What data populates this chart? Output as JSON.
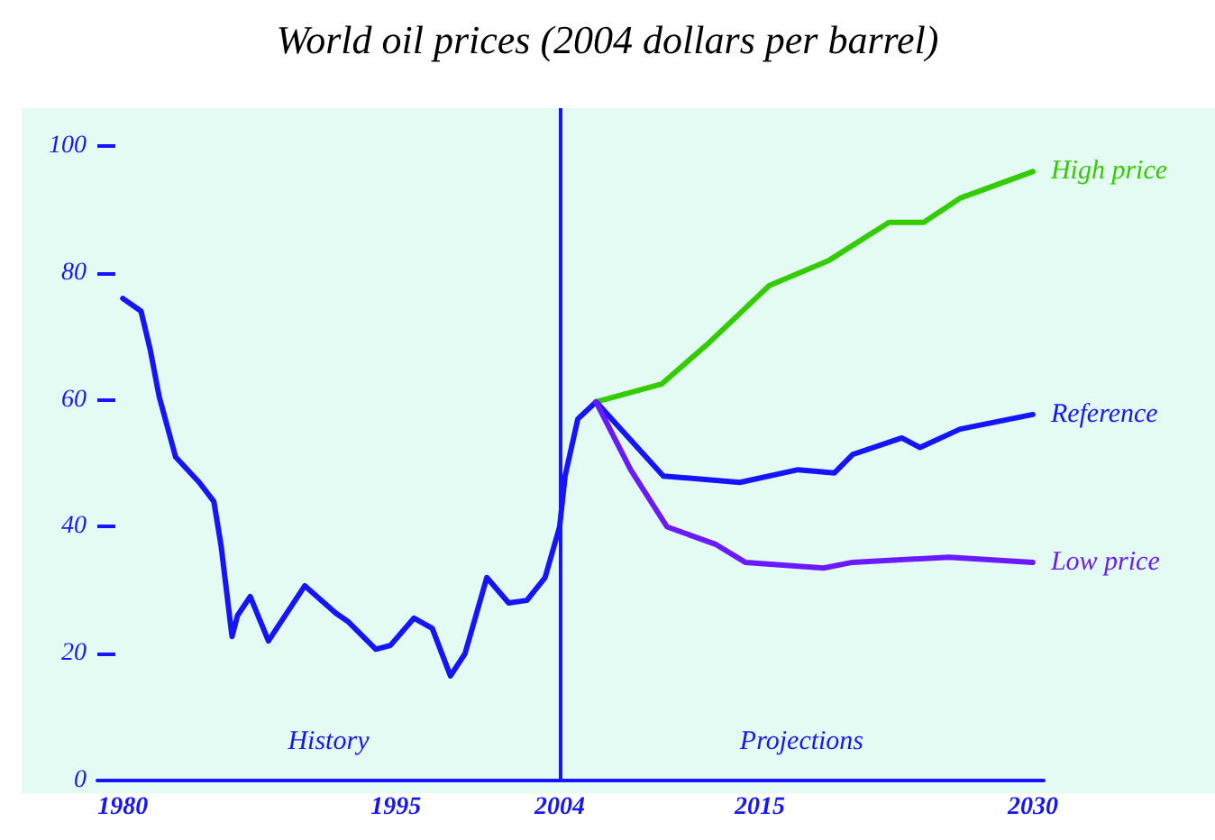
{
  "chart_data": {
    "type": "line",
    "title": "World oil prices (2004 dollars per barrel)",
    "series": [
      {
        "color": "#1414ff",
        "x": [
          1980,
          1981,
          1981.5,
          1982,
          1982.9,
          1984.2,
          1985,
          1985.4,
          1986,
          1986.3,
          1987,
          1988,
          1990,
          1991.7,
          1992.4,
          1993.9,
          1994.7,
          1996,
          1997,
          1998,
          1998.8,
          2000,
          2001.2,
          2002.2,
          2003.2,
          2004,
          2004.3,
          2005,
          2006
        ],
        "values": [
          76,
          74,
          68,
          60.5,
          51,
          47,
          44,
          37,
          22.7,
          26,
          29,
          22,
          30.7,
          26.4,
          25,
          20.7,
          21.3,
          25.6,
          24,
          16.5,
          20,
          32,
          28,
          28.4,
          32,
          40,
          48,
          57,
          59.7
        ]
      },
      {
        "name": "High price",
        "color": "#33cc00",
        "x": [
          2006,
          2009.6,
          2012.2,
          2015.5,
          2018.8,
          2022.1,
          2024,
          2026,
          2030
        ],
        "values": [
          59.7,
          62.5,
          69,
          78,
          82,
          88,
          88,
          91.8,
          96
        ]
      },
      {
        "name": "Reference",
        "color": "#1414ff",
        "x": [
          2006,
          2009.7,
          2013.9,
          2017.1,
          2019.1,
          2020.1,
          2022.8,
          2023.8,
          2026,
          2030
        ],
        "values": [
          59.7,
          48,
          47,
          49,
          48.5,
          51.4,
          54,
          52.5,
          55.4,
          57.7
        ]
      },
      {
        "name": "Low price",
        "color": "#6a1aff",
        "x": [
          2006,
          2007.9,
          2009.9,
          2012.6,
          2014.2,
          2018.5,
          2020.1,
          2025.4,
          2030
        ],
        "values": [
          59.7,
          49,
          40,
          37.2,
          34.4,
          33.5,
          34.4,
          35.2,
          34.4
        ]
      }
    ],
    "annotations": [
      "History",
      "Projections"
    ],
    "ref_lines": [
      {
        "axis": "x",
        "value": 2004,
        "color": "#1414ff"
      }
    ],
    "xlim": [
      1978.6,
      2030.6
    ],
    "xticks": [
      1980,
      1995,
      2004,
      2015,
      2030
    ],
    "ylim": [
      0,
      106
    ],
    "yticks": [
      0,
      20,
      40,
      60,
      80,
      100
    ],
    "grid": false,
    "legend": false,
    "marker": "none",
    "line_style": "solid"
  }
}
